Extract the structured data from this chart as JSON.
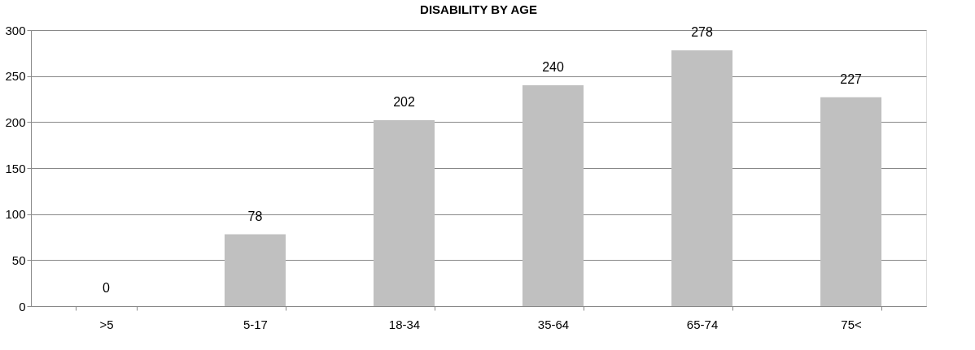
{
  "chart_data": {
    "type": "bar",
    "title": "DISABILITY BY AGE",
    "categories": [
      ">5",
      "5-17",
      "18-34",
      "35-64",
      "65-74",
      "75<"
    ],
    "values": [
      0,
      78,
      202,
      240,
      278,
      227
    ],
    "color": "#c0c0c0",
    "ylim": [
      0,
      300
    ],
    "yticks": [
      0,
      50,
      100,
      150,
      200,
      250,
      300
    ],
    "grid": "y",
    "data_labels": true
  }
}
